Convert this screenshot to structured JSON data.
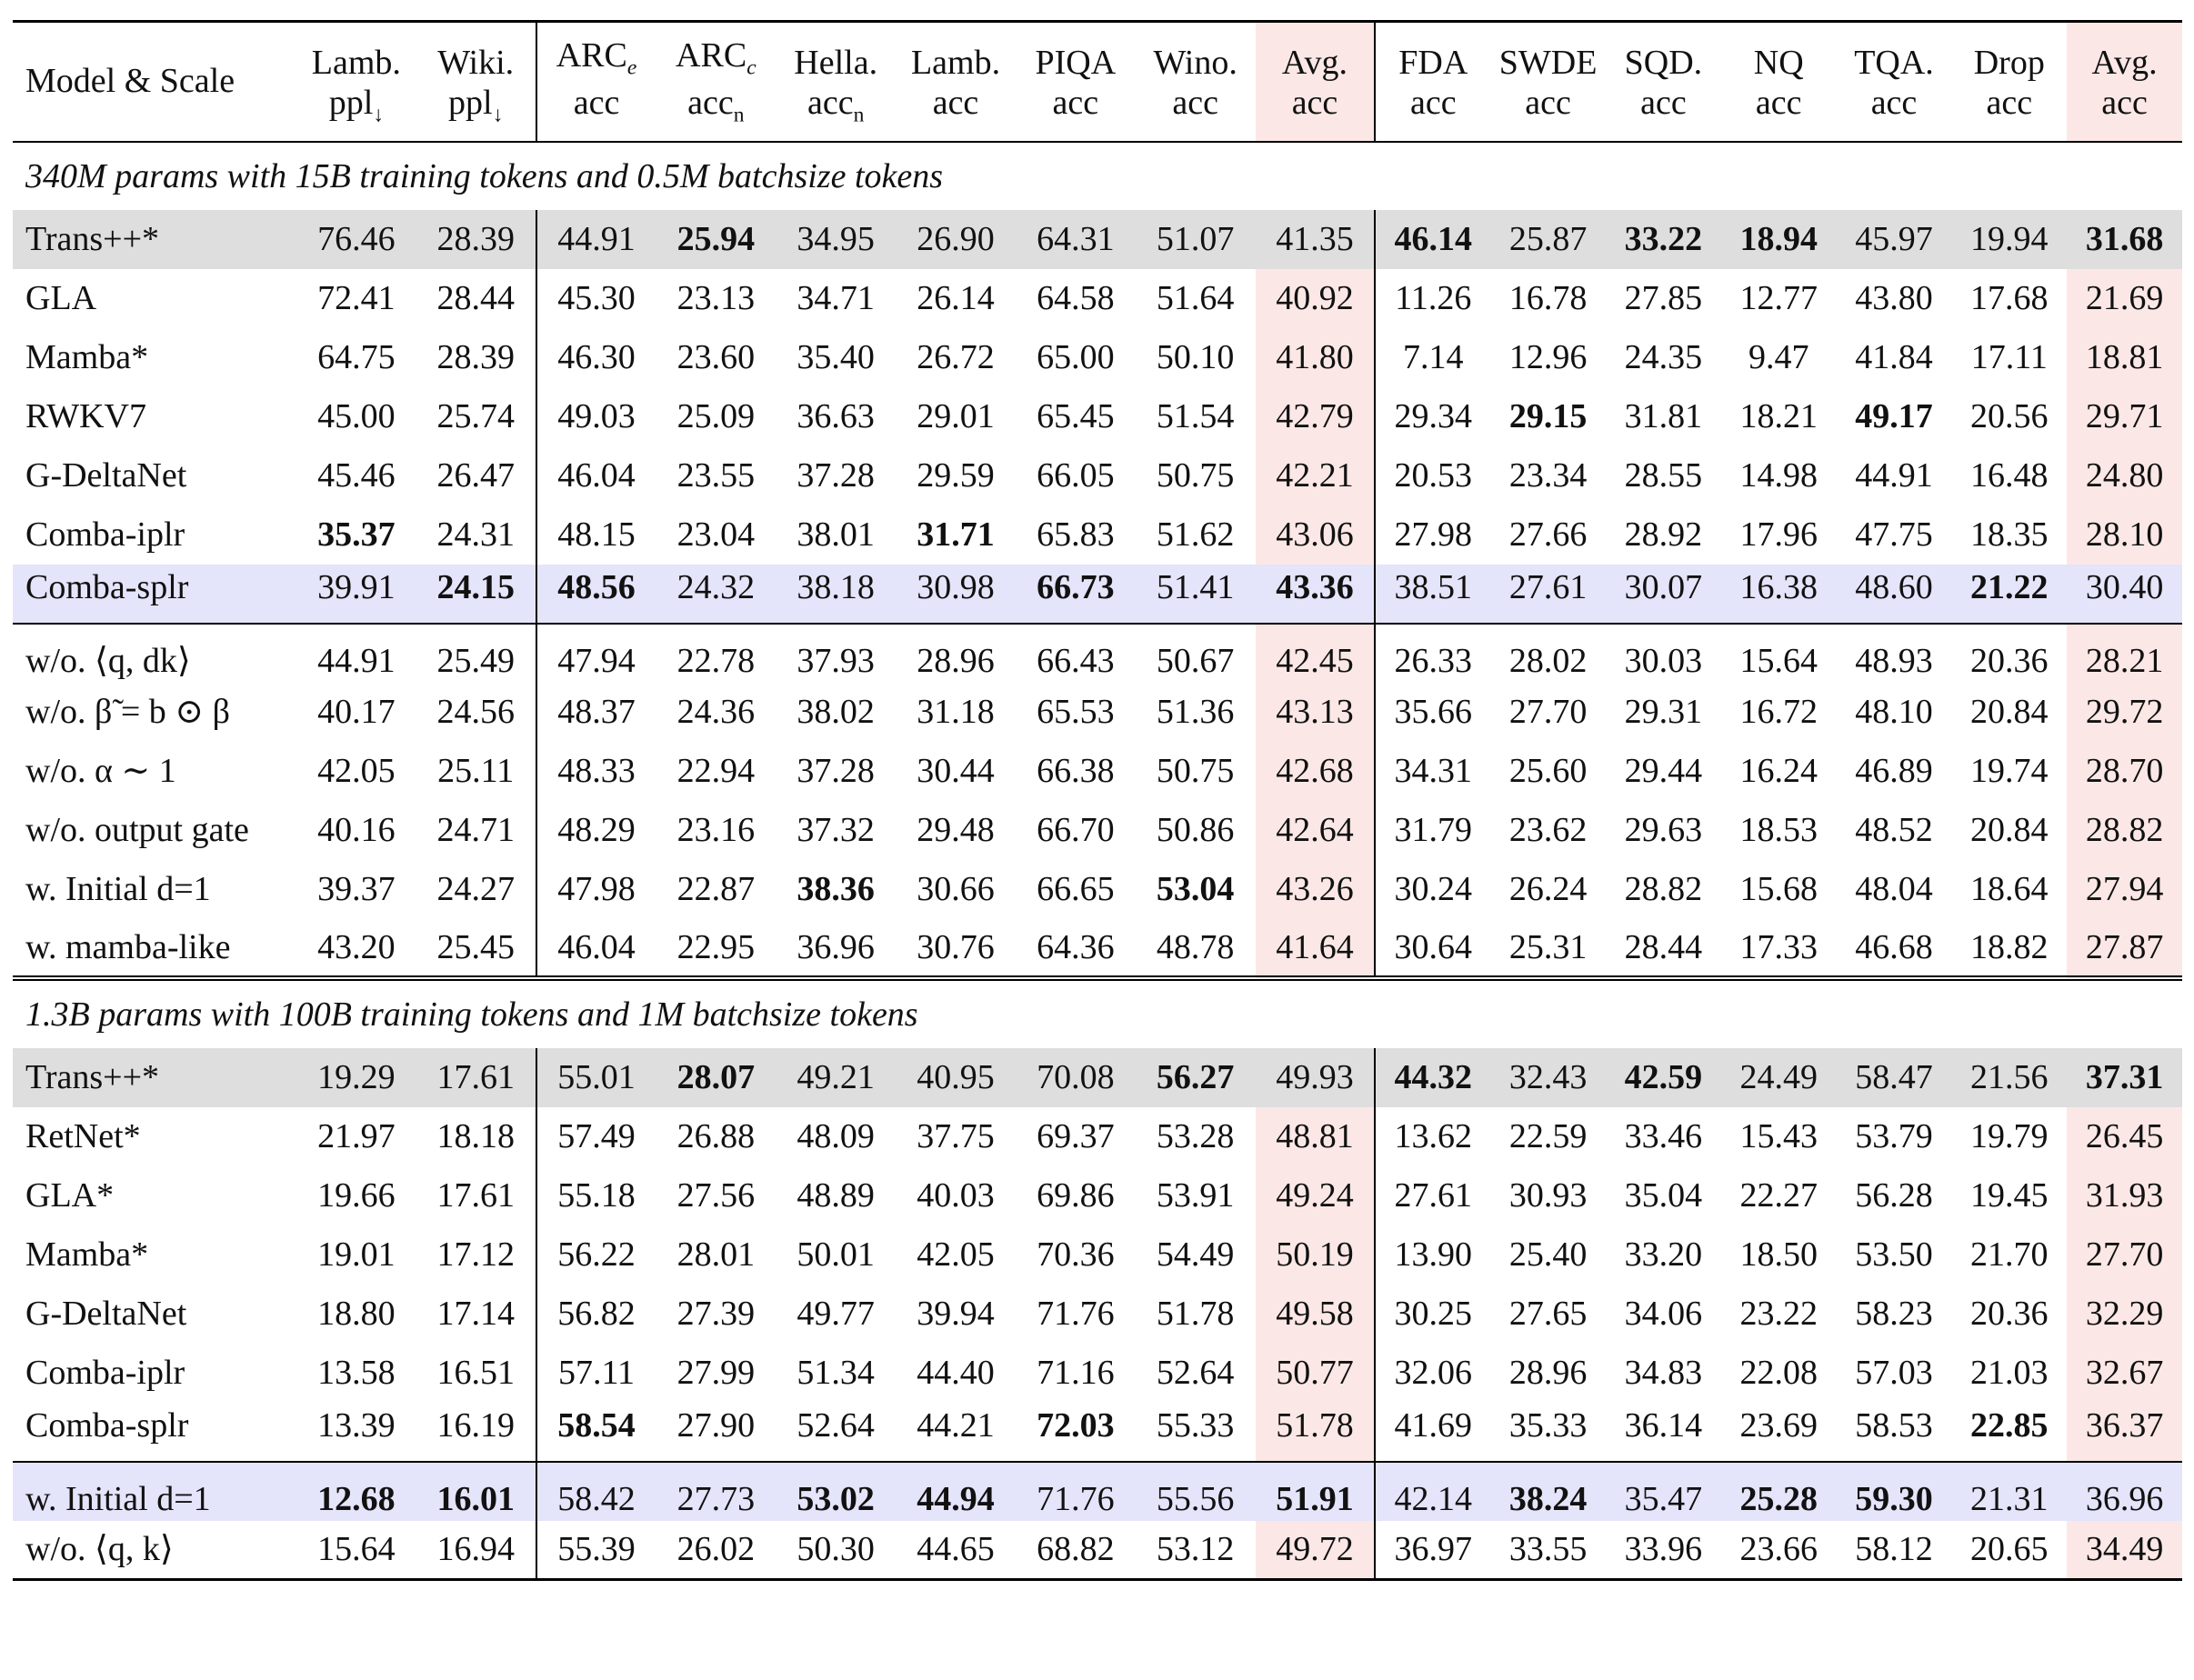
{
  "header": {
    "model_label": "Model & Scale",
    "columns": [
      {
        "top": "Lamb.",
        "bottom": "ppl↓"
      },
      {
        "top": "Wiki.",
        "bottom": "ppl↓"
      },
      {
        "top": "ARCe",
        "bottom": "acc"
      },
      {
        "top": "ARCc",
        "bottom": "accn"
      },
      {
        "top": "Hella.",
        "bottom": "accn"
      },
      {
        "top": "Lamb.",
        "bottom": "acc"
      },
      {
        "top": "PIQA",
        "bottom": "acc"
      },
      {
        "top": "Wino.",
        "bottom": "acc"
      },
      {
        "top": "Avg.",
        "bottom": "acc"
      },
      {
        "top": "FDA",
        "bottom": "acc"
      },
      {
        "top": "SWDE",
        "bottom": "acc"
      },
      {
        "top": "SQD.",
        "bottom": "acc"
      },
      {
        "top": "NQ",
        "bottom": "acc"
      },
      {
        "top": "TQA.",
        "bottom": "acc"
      },
      {
        "top": "Drop",
        "bottom": "acc"
      },
      {
        "top": "Avg.",
        "bottom": "acc"
      }
    ]
  },
  "sections": [
    {
      "title": "340M params with 15B training tokens and 0.5M batchsize tokens",
      "rows": [
        {
          "model": "Trans++*",
          "values": [
            "76.46",
            "28.39",
            "44.91",
            "25.94",
            "34.95",
            "26.90",
            "64.31",
            "51.07",
            "41.35",
            "46.14",
            "25.87",
            "33.22",
            "18.94",
            "45.97",
            "19.94",
            "31.68"
          ],
          "bold": [
            3,
            9,
            11,
            12,
            15
          ]
        },
        {
          "model": "GLA",
          "values": [
            "72.41",
            "28.44",
            "45.30",
            "23.13",
            "34.71",
            "26.14",
            "64.58",
            "51.64",
            "40.92",
            "11.26",
            "16.78",
            "27.85",
            "12.77",
            "43.80",
            "17.68",
            "21.69"
          ],
          "bold": []
        },
        {
          "model": "Mamba*",
          "values": [
            "64.75",
            "28.39",
            "46.30",
            "23.60",
            "35.40",
            "26.72",
            "65.00",
            "50.10",
            "41.80",
            "7.14",
            "12.96",
            "24.35",
            "9.47",
            "41.84",
            "17.11",
            "18.81"
          ],
          "bold": []
        },
        {
          "model": "RWKV7",
          "values": [
            "45.00",
            "25.74",
            "49.03",
            "25.09",
            "36.63",
            "29.01",
            "65.45",
            "51.54",
            "42.79",
            "29.34",
            "29.15",
            "31.81",
            "18.21",
            "49.17",
            "20.56",
            "29.71"
          ],
          "bold": [
            10,
            13
          ]
        },
        {
          "model": "G-DeltaNet",
          "values": [
            "45.46",
            "26.47",
            "46.04",
            "23.55",
            "37.28",
            "29.59",
            "66.05",
            "50.75",
            "42.21",
            "20.53",
            "23.34",
            "28.55",
            "14.98",
            "44.91",
            "16.48",
            "24.80"
          ],
          "bold": []
        },
        {
          "model": "Comba-iplr",
          "values": [
            "35.37",
            "24.31",
            "48.15",
            "23.04",
            "38.01",
            "31.71",
            "65.83",
            "51.62",
            "43.06",
            "27.98",
            "27.66",
            "28.92",
            "17.96",
            "47.75",
            "18.35",
            "28.10"
          ],
          "bold": [
            0,
            5
          ]
        },
        {
          "model": "Comba-splr",
          "values": [
            "39.91",
            "24.15",
            "48.56",
            "24.32",
            "38.18",
            "30.98",
            "66.73",
            "51.41",
            "43.36",
            "38.51",
            "27.61",
            "30.07",
            "16.38",
            "48.60",
            "21.22",
            "30.40"
          ],
          "bold": [
            1,
            2,
            6,
            8,
            14
          ]
        }
      ],
      "ablations": [
        {
          "model": "w/o. ⟨q, dk⟩",
          "values": [
            "44.91",
            "25.49",
            "47.94",
            "22.78",
            "37.93",
            "28.96",
            "66.43",
            "50.67",
            "42.45",
            "26.33",
            "28.02",
            "30.03",
            "15.64",
            "48.93",
            "20.36",
            "28.21"
          ],
          "bold": []
        },
        {
          "model": "w/o. β̃ = b ⊙ β",
          "values": [
            "40.17",
            "24.56",
            "48.37",
            "24.36",
            "38.02",
            "31.18",
            "65.53",
            "51.36",
            "43.13",
            "35.66",
            "27.70",
            "29.31",
            "16.72",
            "48.10",
            "20.84",
            "29.72"
          ],
          "bold": []
        },
        {
          "model": "w/o. α ∼ 1",
          "values": [
            "42.05",
            "25.11",
            "48.33",
            "22.94",
            "37.28",
            "30.44",
            "66.38",
            "50.75",
            "42.68",
            "34.31",
            "25.60",
            "29.44",
            "16.24",
            "46.89",
            "19.74",
            "28.70"
          ],
          "bold": []
        },
        {
          "model": "w/o. output gate",
          "values": [
            "40.16",
            "24.71",
            "48.29",
            "23.16",
            "37.32",
            "29.48",
            "66.70",
            "50.86",
            "42.64",
            "31.79",
            "23.62",
            "29.63",
            "18.53",
            "48.52",
            "20.84",
            "28.82"
          ],
          "bold": []
        },
        {
          "model": "w. Initial d=1",
          "values": [
            "39.37",
            "24.27",
            "47.98",
            "22.87",
            "38.36",
            "30.66",
            "66.65",
            "53.04",
            "43.26",
            "30.24",
            "26.24",
            "28.82",
            "15.68",
            "48.04",
            "18.64",
            "27.94"
          ],
          "bold": [
            4,
            7
          ]
        },
        {
          "model": "w. mamba-like",
          "values": [
            "43.20",
            "25.45",
            "46.04",
            "22.95",
            "36.96",
            "30.76",
            "64.36",
            "48.78",
            "41.64",
            "30.64",
            "25.31",
            "28.44",
            "17.33",
            "46.68",
            "18.82",
            "27.87"
          ],
          "bold": []
        }
      ]
    },
    {
      "title": "1.3B params with 100B training tokens and 1M batchsize tokens",
      "rows": [
        {
          "model": "Trans++*",
          "values": [
            "19.29",
            "17.61",
            "55.01",
            "28.07",
            "49.21",
            "40.95",
            "70.08",
            "56.27",
            "49.93",
            "44.32",
            "32.43",
            "42.59",
            "24.49",
            "58.47",
            "21.56",
            "37.31"
          ],
          "bold": [
            3,
            7,
            9,
            11,
            15
          ]
        },
        {
          "model": "RetNet*",
          "values": [
            "21.97",
            "18.18",
            "57.49",
            "26.88",
            "48.09",
            "37.75",
            "69.37",
            "53.28",
            "48.81",
            "13.62",
            "22.59",
            "33.46",
            "15.43",
            "53.79",
            "19.79",
            "26.45"
          ],
          "bold": []
        },
        {
          "model": "GLA*",
          "values": [
            "19.66",
            "17.61",
            "55.18",
            "27.56",
            "48.89",
            "40.03",
            "69.86",
            "53.91",
            "49.24",
            "27.61",
            "30.93",
            "35.04",
            "22.27",
            "56.28",
            "19.45",
            "31.93"
          ],
          "bold": []
        },
        {
          "model": "Mamba*",
          "values": [
            "19.01",
            "17.12",
            "56.22",
            "28.01",
            "50.01",
            "42.05",
            "70.36",
            "54.49",
            "50.19",
            "13.90",
            "25.40",
            "33.20",
            "18.50",
            "53.50",
            "21.70",
            "27.70"
          ],
          "bold": []
        },
        {
          "model": "G-DeltaNet",
          "values": [
            "18.80",
            "17.14",
            "56.82",
            "27.39",
            "49.77",
            "39.94",
            "71.76",
            "51.78",
            "49.58",
            "30.25",
            "27.65",
            "34.06",
            "23.22",
            "58.23",
            "20.36",
            "32.29"
          ],
          "bold": []
        },
        {
          "model": "Comba-iplr",
          "values": [
            "13.58",
            "16.51",
            "57.11",
            "27.99",
            "51.34",
            "44.40",
            "71.16",
            "52.64",
            "50.77",
            "32.06",
            "28.96",
            "34.83",
            "22.08",
            "57.03",
            "21.03",
            "32.67"
          ],
          "bold": []
        },
        {
          "model": "Comba-splr",
          "values": [
            "13.39",
            "16.19",
            "58.54",
            "27.90",
            "52.64",
            "44.21",
            "72.03",
            "55.33",
            "51.78",
            "41.69",
            "35.33",
            "36.14",
            "23.69",
            "58.53",
            "22.85",
            "36.37"
          ],
          "bold": [
            2,
            6,
            14
          ]
        }
      ],
      "ablations": [
        {
          "model": "w. Initial d=1",
          "values": [
            "12.68",
            "16.01",
            "58.42",
            "27.73",
            "53.02",
            "44.94",
            "71.76",
            "55.56",
            "51.91",
            "42.14",
            "38.24",
            "35.47",
            "25.28",
            "59.30",
            "21.31",
            "36.96"
          ],
          "bold": [
            0,
            1,
            4,
            5,
            8,
            10,
            12,
            13
          ]
        },
        {
          "model": "w/o. ⟨q, k⟩",
          "values": [
            "15.64",
            "16.94",
            "55.39",
            "26.02",
            "50.30",
            "44.65",
            "68.82",
            "53.12",
            "49.72",
            "36.97",
            "33.55",
            "33.96",
            "23.66",
            "58.12",
            "20.65",
            "34.49"
          ],
          "bold": []
        }
      ]
    }
  ],
  "highlights": {
    "gray_rows": [
      "0.rows.0",
      "1.rows.0"
    ],
    "blue_rows": [
      "0.rows.6",
      "1.ablations.0"
    ],
    "avg_columns": [
      8,
      15
    ],
    "colors": {
      "avg_bg": "#fbe8e6",
      "gray_bg": "#dedede",
      "blue_bg": "#e4e4fa"
    }
  }
}
